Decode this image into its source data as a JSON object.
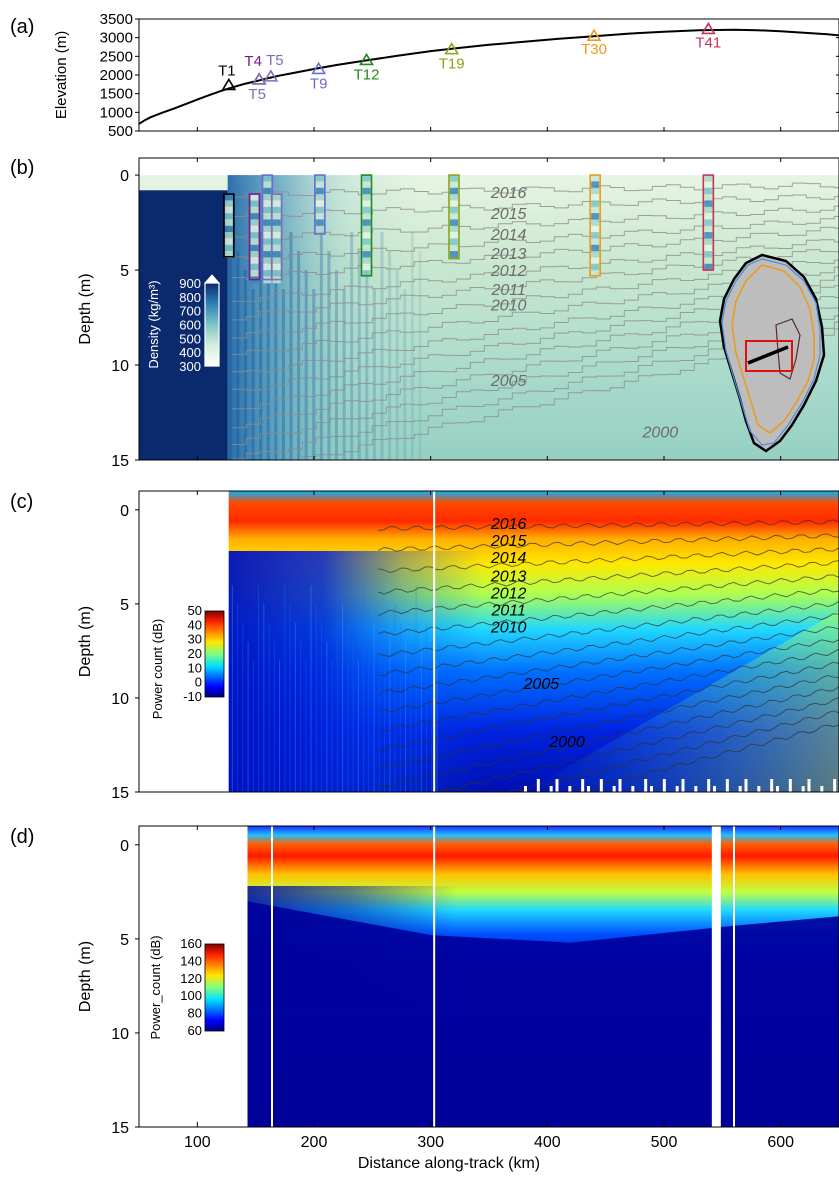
{
  "chart_data": [
    {
      "type": "line",
      "panel_label": "(a)",
      "ylabel": "Elevation (m)",
      "ylim": [
        500,
        3500
      ],
      "xlim": [
        50,
        650
      ],
      "yticks": [
        "3500",
        "3000",
        "2500",
        "2000",
        "1500",
        "1000",
        "500"
      ],
      "series": [
        {
          "x": [
            50,
            55,
            60,
            70,
            80,
            90,
            100,
            110,
            120,
            127,
            140,
            150,
            160,
            170,
            180,
            200,
            220,
            245,
            270,
            300,
            320,
            350,
            380,
            410,
            440,
            470,
            500,
            530,
            560,
            580,
            600,
            620,
            640,
            650
          ],
          "y": [
            690,
            790,
            870,
            990,
            1100,
            1220,
            1340,
            1460,
            1570,
            1640,
            1760,
            1830,
            1910,
            1980,
            2040,
            2160,
            2270,
            2390,
            2510,
            2640,
            2710,
            2810,
            2890,
            2970,
            3040,
            3110,
            3160,
            3200,
            3210,
            3200,
            3170,
            3130,
            3090,
            3060
          ]
        }
      ],
      "stations": [
        {
          "label": "T1",
          "x": 127,
          "y": 1720,
          "color": "#000000"
        },
        {
          "label": "T4",
          "x": 153,
          "y": 1870,
          "color": "#7b1a87"
        },
        {
          "label": "T5",
          "x": 163,
          "y": 1950,
          "color": "#7e6fb3"
        },
        {
          "label": "T5",
          "x": 153,
          "y": 1870,
          "color": "#7e6fb3"
        },
        {
          "label": "T9",
          "x": 204,
          "y": 2150,
          "color": "#6a6ad8"
        },
        {
          "label": "T12",
          "x": 245,
          "y": 2390,
          "color": "#1f8a1f"
        },
        {
          "label": "T19",
          "x": 318,
          "y": 2680,
          "color": "#8aa317"
        },
        {
          "label": "T30",
          "x": 440,
          "y": 3040,
          "color": "#ec9a1a"
        },
        {
          "label": "T41",
          "x": 538,
          "y": 3220,
          "color": "#c8325a"
        }
      ]
    },
    {
      "type": "heatmap",
      "panel_label": "(b)",
      "ylabel": "Depth (m)",
      "ylim": [
        15,
        -0.9
      ],
      "xlim": [
        50,
        650
      ],
      "yticks": [
        "0",
        "5",
        "10",
        "15"
      ],
      "colorbar": {
        "label": "Density (kg/m³)",
        "ticks": [
          "900",
          "800",
          "700",
          "600",
          "500",
          "400",
          "300"
        ],
        "range": [
          300,
          900
        ]
      },
      "year_labels": [
        {
          "text": "2016",
          "x": 360,
          "depth": 0.9
        },
        {
          "text": "2015",
          "x": 360,
          "depth": 2.0
        },
        {
          "text": "2014",
          "x": 360,
          "depth": 3.1
        },
        {
          "text": "2013",
          "x": 360,
          "depth": 4.1
        },
        {
          "text": "2012",
          "x": 360,
          "depth": 5.0
        },
        {
          "text": "2011",
          "x": 360,
          "depth": 6.0
        },
        {
          "text": "2010",
          "x": 360,
          "depth": 6.8
        },
        {
          "text": "2005",
          "x": 360,
          "depth": 10.8
        },
        {
          "text": "2000",
          "x": 490,
          "depth": 13.5
        }
      ],
      "cores": [
        {
          "x": 127,
          "top": 1.0,
          "bottom": 4.3,
          "color": "#000000"
        },
        {
          "x": 149,
          "top": 1.0,
          "bottom": 5.5,
          "color": "#7b1a87"
        },
        {
          "x": 160,
          "top": 0.0,
          "bottom": 5.5,
          "color": "#6a6ad8"
        },
        {
          "x": 168,
          "top": 1.0,
          "bottom": 5.5,
          "color": "#7e6fb3"
        },
        {
          "x": 205,
          "top": 0.0,
          "bottom": 3.1,
          "color": "#6a6ad8"
        },
        {
          "x": 245,
          "top": 0.0,
          "bottom": 5.3,
          "color": "#1f8a1f"
        },
        {
          "x": 320,
          "top": 0.0,
          "bottom": 4.4,
          "color": "#8aa317"
        },
        {
          "x": 441,
          "top": 0.0,
          "bottom": 5.3,
          "color": "#ec9a1a"
        },
        {
          "x": 538,
          "top": 0.0,
          "bottom": 5.0,
          "color": "#c8325a"
        }
      ]
    },
    {
      "type": "heatmap",
      "panel_label": "(c)",
      "ylabel": "Depth (m)",
      "ylim": [
        15,
        -1
      ],
      "xlim": [
        50,
        650
      ],
      "yticks": [
        "0",
        "5",
        "10",
        "15"
      ],
      "colorbar": {
        "label": "Power count (dB)",
        "ticks": [
          "50",
          "40",
          "30",
          "20",
          "10",
          "0",
          "-10"
        ],
        "range": [
          -10,
          50
        ]
      },
      "year_labels": [
        {
          "text": "2016",
          "x": 360,
          "depth": 0.7
        },
        {
          "text": "2015",
          "x": 360,
          "depth": 1.6
        },
        {
          "text": "2014",
          "x": 360,
          "depth": 2.5
        },
        {
          "text": "2013",
          "x": 360,
          "depth": 3.5
        },
        {
          "text": "2012",
          "x": 360,
          "depth": 4.4
        },
        {
          "text": "2011",
          "x": 360,
          "depth": 5.3
        },
        {
          "text": "2010",
          "x": 360,
          "depth": 6.2
        },
        {
          "text": "2005",
          "x": 388,
          "depth": 9.2
        },
        {
          "text": "2000",
          "x": 410,
          "depth": 12.3
        }
      ]
    },
    {
      "type": "heatmap",
      "panel_label": "(d)",
      "ylabel": "Depth (m)",
      "xlabel": "Distance along-track (km)",
      "ylim": [
        15,
        -1
      ],
      "xlim": [
        50,
        650
      ],
      "yticks": [
        "0",
        "5",
        "10",
        "15"
      ],
      "xticks": [
        "100",
        "200",
        "300",
        "400",
        "500",
        "600"
      ],
      "colorbar": {
        "label": "Power_count (dB)",
        "ticks": [
          "160",
          "140",
          "120",
          "100",
          "80",
          "60"
        ],
        "range": [
          60,
          160
        ]
      }
    }
  ],
  "colors": {
    "jet_dark_blue": "#00007f",
    "density_dark": "#0b2a6e",
    "core_outline_red": "#d82020",
    "inset_outline_orange": "#ec9a1a"
  }
}
